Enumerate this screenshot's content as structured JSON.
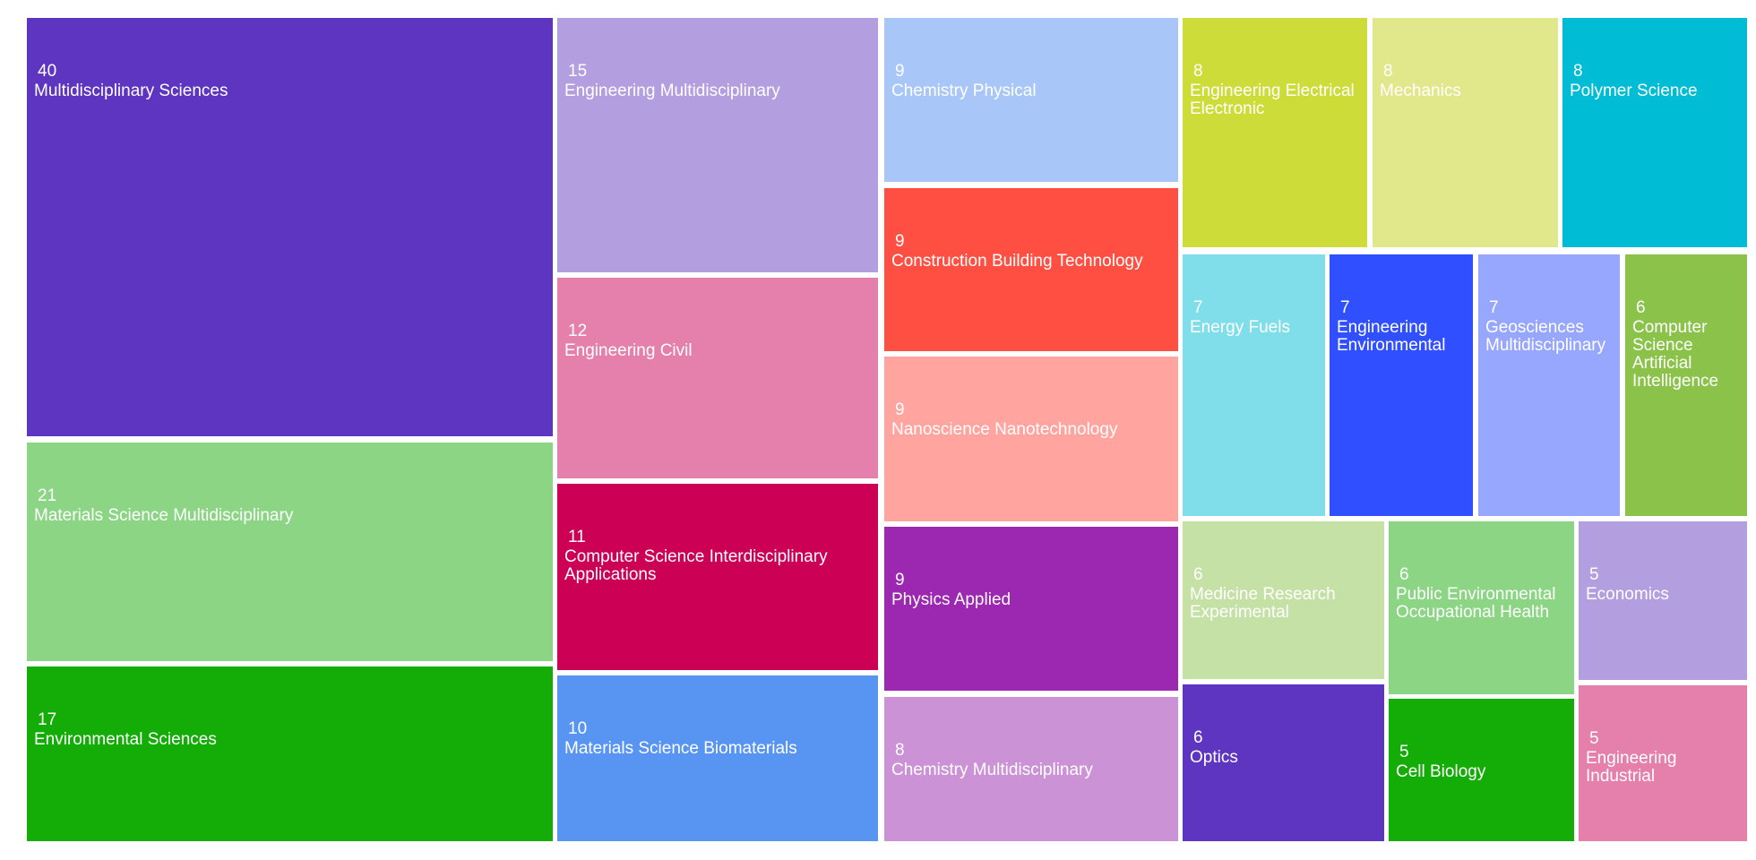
{
  "chart_data": {
    "type": "treemap",
    "items": [
      {
        "name": "Multidisciplinary Sciences",
        "value": 40,
        "color": "#5e35c1"
      },
      {
        "name": "Materials Science Multidisciplinary",
        "value": 21,
        "color": "#8bd585"
      },
      {
        "name": "Environmental Sciences",
        "value": 17,
        "color": "#14ac06"
      },
      {
        "name": "Engineering Multidisciplinary",
        "value": 15,
        "color": "#b39ee0"
      },
      {
        "name": "Engineering Civil",
        "value": 12,
        "color": "#e57fab"
      },
      {
        "name": "Computer Science Interdisciplinary Applications",
        "value": 11,
        "color": "#cc0055"
      },
      {
        "name": "Materials Science Biomaterials",
        "value": 10,
        "color": "#5894f2"
      },
      {
        "name": "Chemistry Physical",
        "value": 9,
        "color": "#a8c7f8"
      },
      {
        "name": "Construction Building Technology",
        "value": 9,
        "color": "#ff4f42"
      },
      {
        "name": "Nanoscience Nanotechnology",
        "value": 9,
        "color": "#ffa49e"
      },
      {
        "name": "Physics Applied",
        "value": 9,
        "color": "#9c27b0"
      },
      {
        "name": "Chemistry Multidisciplinary",
        "value": 8,
        "color": "#cb92d6"
      },
      {
        "name": "Engineering Electrical Electronic",
        "value": 8,
        "color": "#cddc39"
      },
      {
        "name": "Mechanics",
        "value": 8,
        "color": "#e1e88b"
      },
      {
        "name": "Polymer Science",
        "value": 8,
        "color": "#00bcd4"
      },
      {
        "name": "Energy Fuels",
        "value": 7,
        "color": "#80deea"
      },
      {
        "name": "Engineering Environmental",
        "value": 7,
        "color": "#304ffe"
      },
      {
        "name": "Geosciences Multidisciplinary",
        "value": 7,
        "color": "#98a7fe"
      },
      {
        "name": "Computer Science Artificial Intelligence",
        "value": 6,
        "color": "#8bc34a"
      },
      {
        "name": "Medicine Research Experimental",
        "value": 6,
        "color": "#c5e1a5"
      },
      {
        "name": "Public Environmental Occupational Health",
        "value": 6,
        "color": "#8bd585"
      },
      {
        "name": "Economics",
        "value": 5,
        "color": "#b39ee0"
      },
      {
        "name": "Optics",
        "value": 6,
        "color": "#5e35c1"
      },
      {
        "name": "Cell Biology",
        "value": 5,
        "color": "#14ac06"
      },
      {
        "name": "Engineering Industrial",
        "value": 5,
        "color": "#e57fab"
      }
    ]
  }
}
